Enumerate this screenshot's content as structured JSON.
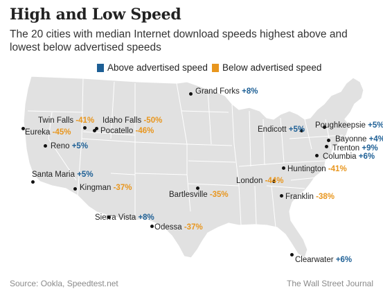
{
  "header": {
    "title": "High and Low Speed",
    "subtitle": "The 20 cities with median Internet download speeds highest above and lowest below advertised speeds"
  },
  "legend": {
    "above_label": "Above advertised speed",
    "below_label": "Below advertised speed",
    "above_color": "#1d5f95",
    "below_color": "#e8961e"
  },
  "cities": {
    "grand_forks": {
      "name": "Grand Forks",
      "pct": "+8%"
    },
    "twin_falls": {
      "name": "Twin Falls",
      "pct": "-41%"
    },
    "idaho_falls": {
      "name": "Idaho Falls",
      "pct": "-50%"
    },
    "eureka": {
      "name": "Eureka",
      "pct": "-45%"
    },
    "pocatello": {
      "name": "Pocatello",
      "pct": "-46%"
    },
    "reno": {
      "name": "Reno",
      "pct": "+5%"
    },
    "santa_maria": {
      "name": "Santa Maria",
      "pct": "+5%"
    },
    "kingman": {
      "name": "Kingman",
      "pct": "-37%"
    },
    "sierra_vista": {
      "name": "Sierra Vista",
      "pct": "+8%"
    },
    "odessa": {
      "name": "Odessa",
      "pct": "-37%"
    },
    "bartlesville": {
      "name": "Bartlesville",
      "pct": "-35%"
    },
    "london": {
      "name": "London",
      "pct": "-44%"
    },
    "huntington": {
      "name": "Huntington",
      "pct": "-41%"
    },
    "franklin": {
      "name": "Franklin",
      "pct": "-38%"
    },
    "clearwater": {
      "name": "Clearwater",
      "pct": "+6%"
    },
    "endicott": {
      "name": "Endicott",
      "pct": "+5%"
    },
    "poughkeepsie": {
      "name": "Poughkeepsie",
      "pct": "+5%"
    },
    "bayonne": {
      "name": "Bayonne",
      "pct": "+4%"
    },
    "trenton": {
      "name": "Trenton",
      "pct": "+9%"
    },
    "columbia": {
      "name": "Columbia",
      "pct": "+6%"
    }
  },
  "footer": {
    "source": "Source: Ookla, Speedtest.net",
    "credit": "The Wall Street Journal"
  }
}
